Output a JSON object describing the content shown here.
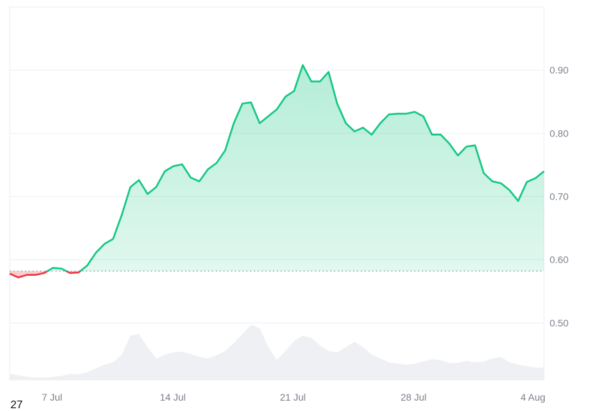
{
  "chart_data": {
    "type": "area",
    "title": "",
    "xlabel": "",
    "ylabel": "",
    "ylim": [
      0.41,
      1.0
    ],
    "grid": true,
    "yticks": [
      "0.50",
      "0.60",
      "0.70",
      "0.80",
      "0.90"
    ],
    "ytick_values": [
      0.5,
      0.6,
      0.7,
      0.8,
      0.9
    ],
    "xticks": [
      "7 Jul",
      "14 Jul",
      "21 Jul",
      "28 Jul",
      "4 Aug"
    ],
    "baseline": 0.582,
    "colors": {
      "up": "#16c784",
      "down": "#ea3943",
      "volume": "#eef0f3",
      "grid": "#eceef1",
      "baseline": "#9aa0a8"
    },
    "x": [
      "Jul 4 12:00",
      "Jul 5 00:00",
      "Jul 5 12:00",
      "Jul 6 00:00",
      "Jul 6 12:00",
      "Jul 7 00:00",
      "Jul 7 12:00",
      "Jul 8 00:00",
      "Jul 8 12:00",
      "Jul 9 00:00",
      "Jul 9 12:00",
      "Jul 10 00:00",
      "Jul 10 12:00",
      "Jul 11 00:00",
      "Jul 11 12:00",
      "Jul 12 00:00",
      "Jul 12 12:00",
      "Jul 13 00:00",
      "Jul 13 12:00",
      "Jul 14 00:00",
      "Jul 14 12:00",
      "Jul 15 00:00",
      "Jul 15 12:00",
      "Jul 16 00:00",
      "Jul 16 12:00",
      "Jul 17 00:00",
      "Jul 17 12:00",
      "Jul 18 00:00",
      "Jul 18 12:00",
      "Jul 19 00:00",
      "Jul 19 12:00",
      "Jul 20 00:00",
      "Jul 20 12:00",
      "Jul 21 00:00",
      "Jul 21 12:00",
      "Jul 22 00:00",
      "Jul 22 12:00",
      "Jul 23 00:00",
      "Jul 23 12:00",
      "Jul 24 00:00",
      "Jul 24 12:00",
      "Jul 25 00:00",
      "Jul 25 12:00",
      "Jul 26 00:00",
      "Jul 26 12:00",
      "Jul 27 00:00",
      "Jul 27 12:00",
      "Jul 28 00:00",
      "Jul 28 12:00",
      "Jul 29 00:00",
      "Jul 29 12:00",
      "Jul 30 00:00",
      "Jul 30 12:00",
      "Jul 31 00:00",
      "Jul 31 12:00",
      "Aug 1 00:00",
      "Aug 1 12:00",
      "Aug 2 00:00",
      "Aug 2 12:00",
      "Aug 3 00:00",
      "Aug 3 12:00",
      "Aug 4 00:00",
      "Aug 4 12:00"
    ],
    "series": [
      {
        "values": [
          0.578,
          0.572,
          0.576,
          0.576,
          0.579,
          0.587,
          0.586,
          0.579,
          0.58,
          0.591,
          0.611,
          0.625,
          0.633,
          0.671,
          0.715,
          0.726,
          0.704,
          0.715,
          0.74,
          0.748,
          0.751,
          0.73,
          0.724,
          0.743,
          0.753,
          0.773,
          0.816,
          0.847,
          0.849,
          0.816,
          0.827,
          0.838,
          0.858,
          0.867,
          0.908,
          0.882,
          0.882,
          0.897,
          0.847,
          0.816,
          0.803,
          0.809,
          0.798,
          0.816,
          0.83,
          0.831,
          0.831,
          0.834,
          0.827,
          0.798,
          0.798,
          0.784,
          0.765,
          0.779,
          0.781,
          0.737,
          0.724,
          0.721,
          0.71,
          0.693,
          0.723,
          0.729,
          0.74
        ]
      },
      {
        "type": "volume",
        "values": [
          8,
          6,
          4,
          3,
          3,
          4,
          5,
          8,
          7,
          10,
          15,
          20,
          23,
          33,
          58,
          60,
          43,
          28,
          33,
          36,
          37,
          34,
          30,
          28,
          32,
          38,
          48,
          60,
          72,
          68,
          43,
          26,
          38,
          51,
          58,
          55,
          45,
          38,
          36,
          43,
          50,
          43,
          33,
          28,
          23,
          21,
          20,
          21,
          24,
          27,
          26,
          22,
          22,
          25,
          23,
          24,
          28,
          30,
          23,
          20,
          18,
          16,
          16
        ]
      }
    ]
  },
  "footer": {
    "cut_label": "27"
  }
}
